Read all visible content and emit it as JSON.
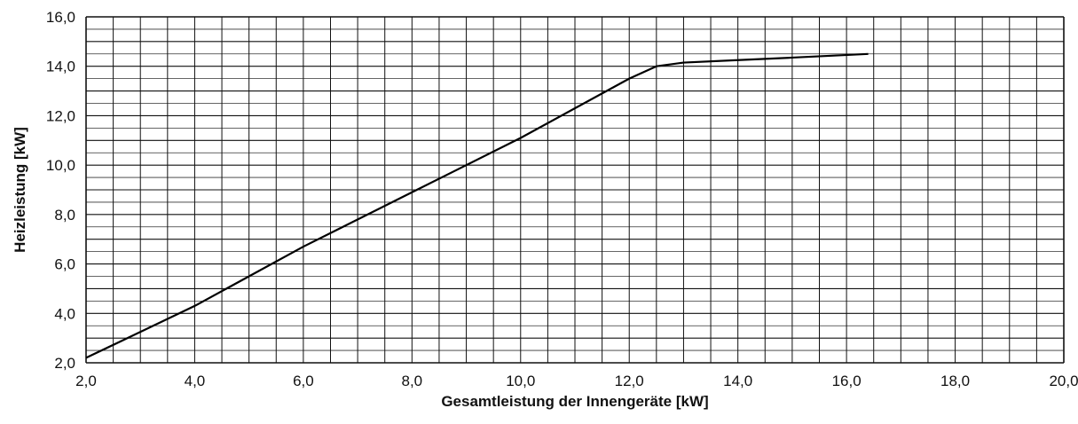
{
  "chart_data": {
    "type": "line",
    "title": "",
    "xlabel": "Gesamtleistung der Innengeräte [kW]",
    "ylabel": "Heizleistung  [kW]",
    "xlim": [
      2.0,
      20.0
    ],
    "ylim": [
      2.0,
      16.0
    ],
    "x_ticks": [
      "2,0",
      "4,0",
      "6,0",
      "8,0",
      "10,0",
      "12,0",
      "14,0",
      "16,0",
      "18,0",
      "20,0"
    ],
    "y_ticks": [
      "2,0",
      "4,0",
      "6,0",
      "8,0",
      "10,0",
      "12,0",
      "14,0",
      "16,0"
    ],
    "grid": true,
    "series": [
      {
        "x": [
          2.0,
          4.0,
          6.0,
          8.0,
          10.0,
          12.0,
          12.5,
          13.0,
          14.0,
          15.0,
          16.4
        ],
        "y": [
          2.2,
          4.3,
          6.7,
          8.9,
          11.1,
          13.5,
          14.0,
          14.15,
          14.25,
          14.35,
          14.5
        ]
      }
    ],
    "color": "#000000"
  }
}
